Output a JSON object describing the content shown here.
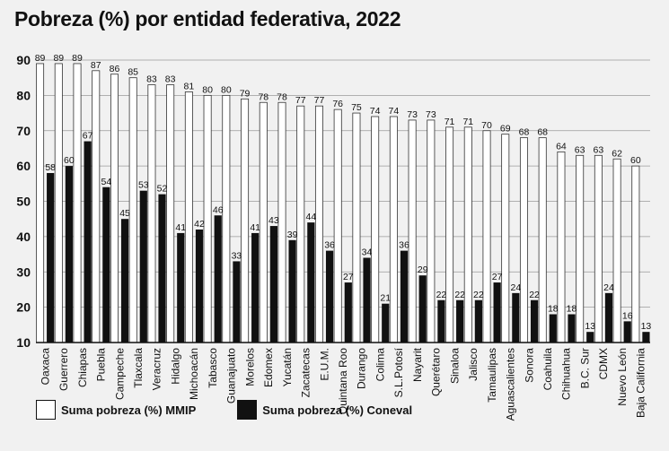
{
  "chart_data": {
    "type": "bar",
    "title": "Pobreza (%) por entidad federativa, 2022",
    "xlabel": "",
    "ylabel": "",
    "ylim": [
      10,
      90
    ],
    "yticks": [
      10,
      20,
      30,
      40,
      50,
      60,
      70,
      80,
      90
    ],
    "grid": true,
    "legend_position": "bottom-left",
    "categories": [
      "Oaxaca",
      "Guerrero",
      "Chiapas",
      "Puebla",
      "Campeche",
      "Tlaxcala",
      "Veracruz",
      "Hidalgo",
      "Michoacán",
      "Tabasco",
      "Guanajuato",
      "Morelos",
      "Edomex",
      "Yucatán",
      "Zacatecas",
      "E.U.M.",
      "Quintana Roo",
      "Durango",
      "Colima",
      "S.L.Potosí",
      "Nayarit",
      "Querétaro",
      "Sinaloa",
      "Jalisco",
      "Tamaulipas",
      "Aguascalientes",
      "Sonora",
      "Coahuila",
      "Chihuahua",
      "B.C. Sur",
      "CDMX",
      "Nuevo León",
      "Baja California"
    ],
    "series": [
      {
        "name": "Suma pobreza (%) MMIP",
        "color": "#ffffff",
        "values": [
          89,
          89,
          89,
          87,
          86,
          85,
          83,
          83,
          81,
          80,
          80,
          79,
          78,
          78,
          77,
          77,
          76,
          75,
          74,
          74,
          73,
          73,
          71,
          71,
          70,
          69,
          68,
          68,
          64,
          63,
          63,
          62,
          60
        ]
      },
      {
        "name": "Suma pobreza (%) Coneval",
        "color": "#111111",
        "values": [
          58,
          60,
          67,
          54,
          45,
          53,
          52,
          41,
          42,
          46,
          33,
          41,
          43,
          39,
          44,
          36,
          27,
          34,
          21,
          36,
          29,
          22,
          22,
          22,
          27,
          24,
          22,
          18,
          18,
          13,
          24,
          16,
          13
        ]
      }
    ]
  }
}
